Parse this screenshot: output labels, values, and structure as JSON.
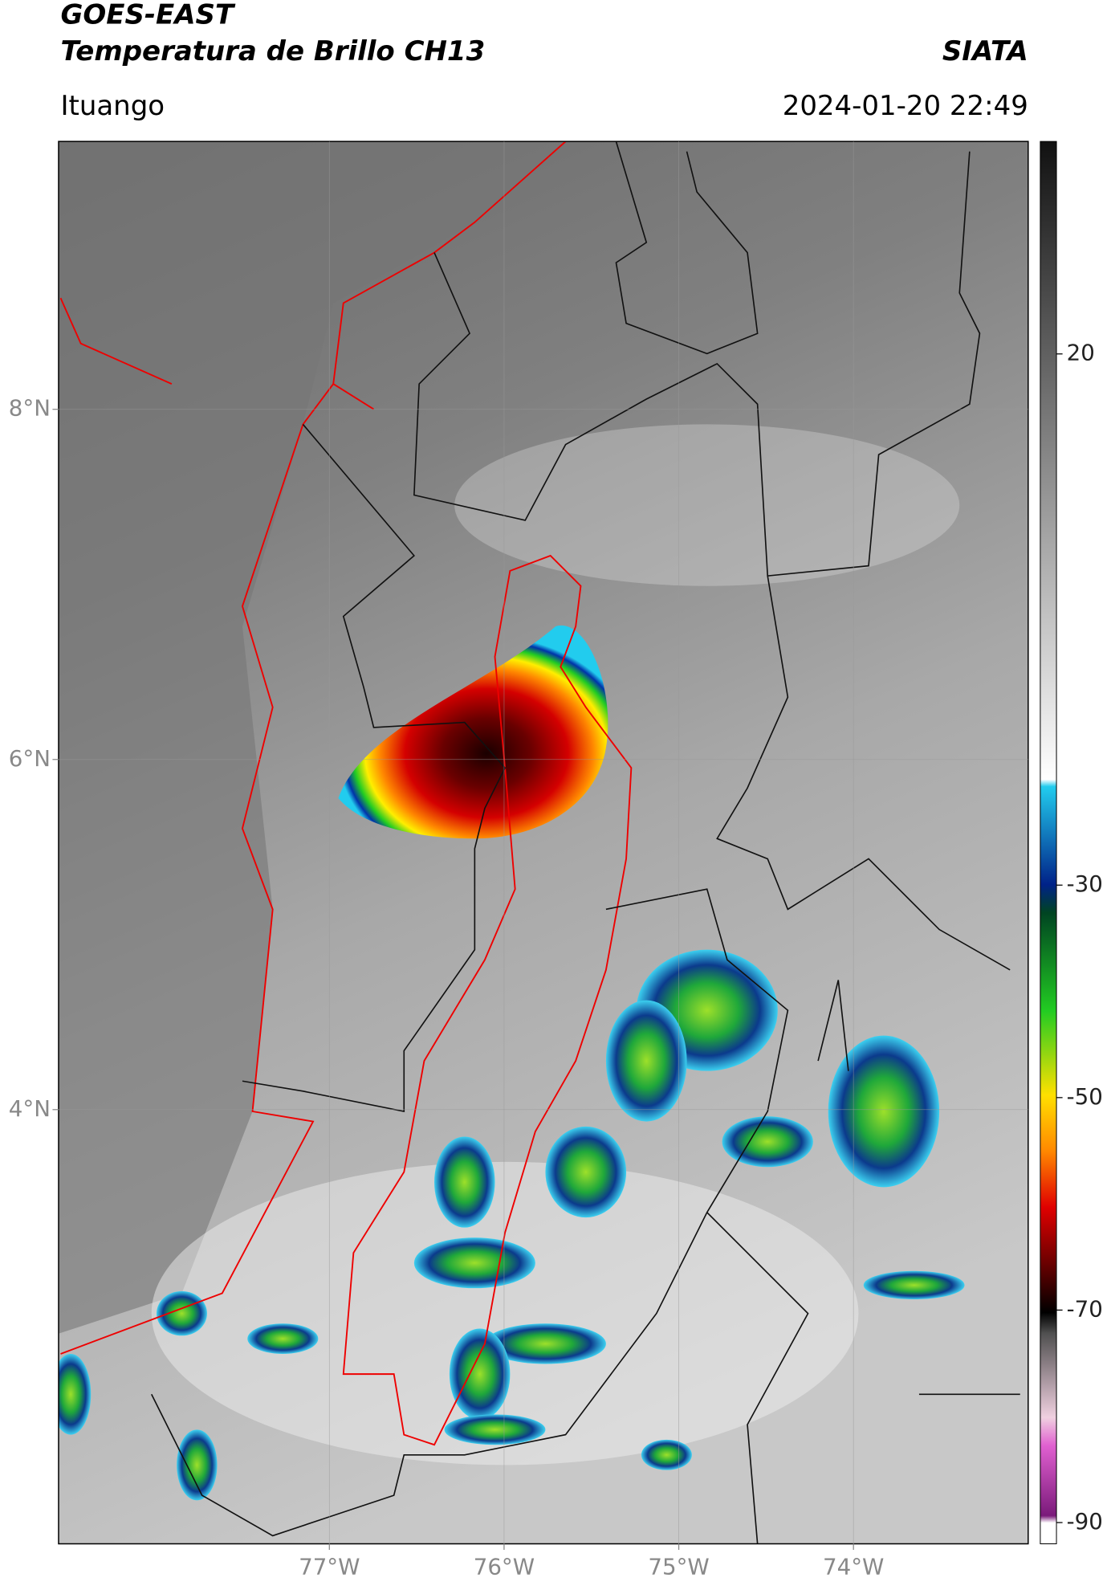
{
  "header": {
    "title": "GOES-EAST",
    "subtitle": "Temperatura de Brillo CH13",
    "source": "SIATA",
    "location": "Ituango",
    "datetime": "2024-01-20 22:49"
  },
  "map": {
    "xlim": [
      -78.55,
      -73.0
    ],
    "ylim": [
      1.52,
      9.53
    ],
    "xticks": [
      {
        "value": -77,
        "label": "77°W"
      },
      {
        "value": -76,
        "label": "76°W"
      },
      {
        "value": -75,
        "label": "75°W"
      },
      {
        "value": -74,
        "label": "74°W"
      }
    ],
    "yticks": [
      {
        "value": 4,
        "label": "4°N"
      },
      {
        "value": 6,
        "label": "6°N"
      },
      {
        "value": 8,
        "label": "8°N"
      }
    ],
    "grid": true
  },
  "colorbar": {
    "ylim": [
      -92,
      40
    ],
    "yticks": [
      20,
      -30,
      -50,
      -70,
      -90
    ]
  }
}
